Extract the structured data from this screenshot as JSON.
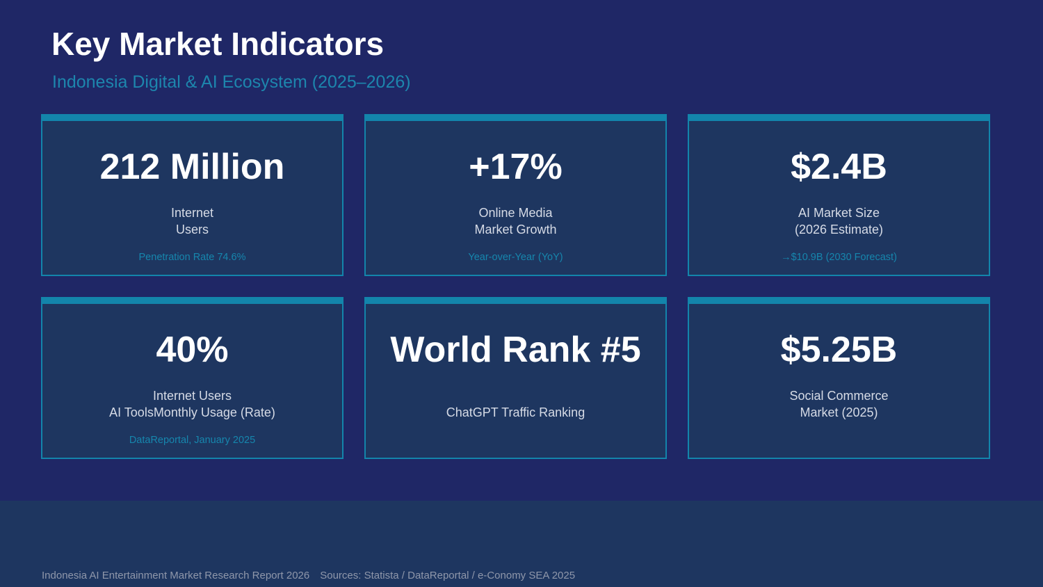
{
  "header": {
    "title": "Key Market Indicators",
    "subtitle": "Indonesia Digital & AI Ecosystem (2025–2026)"
  },
  "cards": [
    {
      "value": "212 Million",
      "label_line1": "Internet",
      "label_line2": "Users",
      "note": "Penetration Rate 74.6%"
    },
    {
      "value": "+17%",
      "label_line1": "Online Media",
      "label_line2": "Market Growth",
      "note": "Year-over-Year (YoY)"
    },
    {
      "value": "$2.4B",
      "label_line1": "AI Market Size",
      "label_line2": "(2026 Estimate)",
      "note": "→$10.9B (2030 Forecast)"
    },
    {
      "value": "40%",
      "label_line1": "Internet Users",
      "label_line2": "AI ToolsMonthly Usage (Rate)",
      "note": "DataReportal, January 2025"
    },
    {
      "value": "World Rank #5",
      "label_line1": "ChatGPT Traffic Ranking"
    },
    {
      "value": "$5.25B",
      "label_line1": "Social Commerce",
      "label_line2": "Market (2025)"
    }
  ],
  "footer": {
    "report": "Indonesia AI Entertainment Market Research Report 2026",
    "sources": "Sources: Statista / DataReportal / e-Conomy SEA 2025"
  },
  "colors": {
    "background": "#1f2766",
    "card_background": "#1e3660",
    "accent": "#1385ab",
    "subtitle": "#1d86ad"
  }
}
